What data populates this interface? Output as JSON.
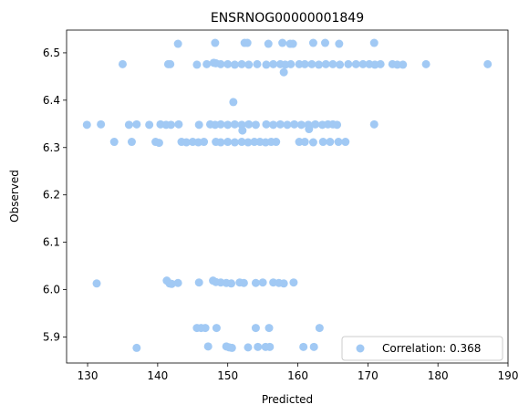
{
  "chart_data": {
    "type": "scatter",
    "title": "ENSRNOG00000001849",
    "xlabel": "Predicted",
    "ylabel": "Observed",
    "xlim": [
      127,
      190
    ],
    "ylim": [
      5.845,
      6.548
    ],
    "x_ticks": [
      130,
      140,
      150,
      160,
      170,
      180,
      190
    ],
    "y_ticks": [
      5.9,
      6.0,
      6.1,
      6.2,
      6.3,
      6.4,
      6.5
    ],
    "y_tick_labels": [
      "5.9",
      "6.0",
      "6.1",
      "6.2",
      "6.3",
      "6.4",
      "6.5"
    ],
    "grid": false,
    "legend_position": "lower-right",
    "point_color": "#a1c9f4",
    "series": [
      {
        "name": "Correlation: 0.368",
        "points": [
          [
            142.9,
            6.519
          ],
          [
            148.2,
            6.521
          ],
          [
            152.4,
            6.521
          ],
          [
            152.8,
            6.521
          ],
          [
            155.8,
            6.519
          ],
          [
            157.8,
            6.521
          ],
          [
            158.9,
            6.519
          ],
          [
            159.3,
            6.519
          ],
          [
            162.2,
            6.521
          ],
          [
            163.9,
            6.521
          ],
          [
            165.9,
            6.519
          ],
          [
            170.9,
            6.521
          ],
          [
            135.0,
            6.476
          ],
          [
            141.5,
            6.476
          ],
          [
            141.8,
            6.476
          ],
          [
            145.6,
            6.475
          ],
          [
            147.0,
            6.476
          ],
          [
            148.0,
            6.479
          ],
          [
            148.3,
            6.478
          ],
          [
            149.0,
            6.476
          ],
          [
            150.0,
            6.476
          ],
          [
            151.0,
            6.475
          ],
          [
            152.0,
            6.476
          ],
          [
            153.0,
            6.475
          ],
          [
            154.2,
            6.476
          ],
          [
            155.5,
            6.475
          ],
          [
            156.5,
            6.476
          ],
          [
            157.5,
            6.476
          ],
          [
            158.2,
            6.475
          ],
          [
            159.0,
            6.476
          ],
          [
            160.2,
            6.476
          ],
          [
            161.0,
            6.476
          ],
          [
            162.0,
            6.476
          ],
          [
            163.0,
            6.475
          ],
          [
            164.0,
            6.476
          ],
          [
            165.0,
            6.476
          ],
          [
            166.0,
            6.475
          ],
          [
            167.2,
            6.476
          ],
          [
            168.3,
            6.476
          ],
          [
            169.3,
            6.476
          ],
          [
            170.2,
            6.476
          ],
          [
            171.0,
            6.475
          ],
          [
            171.8,
            6.476
          ],
          [
            173.5,
            6.476
          ],
          [
            174.2,
            6.475
          ],
          [
            175.0,
            6.475
          ],
          [
            178.3,
            6.476
          ],
          [
            187.1,
            6.476
          ],
          [
            158.0,
            6.459
          ],
          [
            150.8,
            6.396
          ],
          [
            129.9,
            6.348
          ],
          [
            131.9,
            6.349
          ],
          [
            135.9,
            6.348
          ],
          [
            137.0,
            6.349
          ],
          [
            138.8,
            6.348
          ],
          [
            140.4,
            6.349
          ],
          [
            141.2,
            6.348
          ],
          [
            141.9,
            6.348
          ],
          [
            143.0,
            6.349
          ],
          [
            145.9,
            6.348
          ],
          [
            147.5,
            6.349
          ],
          [
            148.2,
            6.348
          ],
          [
            149.0,
            6.349
          ],
          [
            150.0,
            6.348
          ],
          [
            151.0,
            6.349
          ],
          [
            152.0,
            6.348
          ],
          [
            153.0,
            6.349
          ],
          [
            154.0,
            6.348
          ],
          [
            155.5,
            6.349
          ],
          [
            156.5,
            6.348
          ],
          [
            157.5,
            6.349
          ],
          [
            158.5,
            6.348
          ],
          [
            159.5,
            6.349
          ],
          [
            160.5,
            6.348
          ],
          [
            161.5,
            6.348
          ],
          [
            162.5,
            6.349
          ],
          [
            163.5,
            6.348
          ],
          [
            164.3,
            6.349
          ],
          [
            165.0,
            6.349
          ],
          [
            165.6,
            6.348
          ],
          [
            170.9,
            6.349
          ],
          [
            152.1,
            6.336
          ],
          [
            161.6,
            6.339
          ],
          [
            133.8,
            6.312
          ],
          [
            136.3,
            6.312
          ],
          [
            139.7,
            6.312
          ],
          [
            140.2,
            6.31
          ],
          [
            143.4,
            6.312
          ],
          [
            144.1,
            6.311
          ],
          [
            145.0,
            6.312
          ],
          [
            145.8,
            6.311
          ],
          [
            146.6,
            6.312
          ],
          [
            148.3,
            6.312
          ],
          [
            149.0,
            6.311
          ],
          [
            150.0,
            6.312
          ],
          [
            151.0,
            6.311
          ],
          [
            152.0,
            6.312
          ],
          [
            152.9,
            6.311
          ],
          [
            153.8,
            6.312
          ],
          [
            154.6,
            6.312
          ],
          [
            155.4,
            6.311
          ],
          [
            156.2,
            6.312
          ],
          [
            156.9,
            6.312
          ],
          [
            160.2,
            6.312
          ],
          [
            161.0,
            6.312
          ],
          [
            162.2,
            6.311
          ],
          [
            163.6,
            6.312
          ],
          [
            164.6,
            6.312
          ],
          [
            165.8,
            6.312
          ],
          [
            166.8,
            6.312
          ],
          [
            131.3,
            6.013
          ],
          [
            141.3,
            6.019
          ],
          [
            141.7,
            6.013
          ],
          [
            142.0,
            6.012
          ],
          [
            142.9,
            6.014
          ],
          [
            145.9,
            6.015
          ],
          [
            147.9,
            6.019
          ],
          [
            148.3,
            6.016
          ],
          [
            149.0,
            6.015
          ],
          [
            149.8,
            6.014
          ],
          [
            150.5,
            6.013
          ],
          [
            151.7,
            6.015
          ],
          [
            152.3,
            6.014
          ],
          [
            154.0,
            6.014
          ],
          [
            155.0,
            6.015
          ],
          [
            156.5,
            6.015
          ],
          [
            157.3,
            6.014
          ],
          [
            158.0,
            6.013
          ],
          [
            159.4,
            6.015
          ],
          [
            145.6,
            5.919
          ],
          [
            146.2,
            5.919
          ],
          [
            146.8,
            5.919
          ],
          [
            148.4,
            5.919
          ],
          [
            154.0,
            5.919
          ],
          [
            155.9,
            5.919
          ],
          [
            163.1,
            5.919
          ],
          [
            137.0,
            5.877
          ],
          [
            147.2,
            5.88
          ],
          [
            149.8,
            5.88
          ],
          [
            150.2,
            5.878
          ],
          [
            150.6,
            5.877
          ],
          [
            152.9,
            5.878
          ],
          [
            154.3,
            5.879
          ],
          [
            155.4,
            5.879
          ],
          [
            156.0,
            5.879
          ],
          [
            160.8,
            5.879
          ],
          [
            162.3,
            5.879
          ]
        ]
      }
    ]
  }
}
